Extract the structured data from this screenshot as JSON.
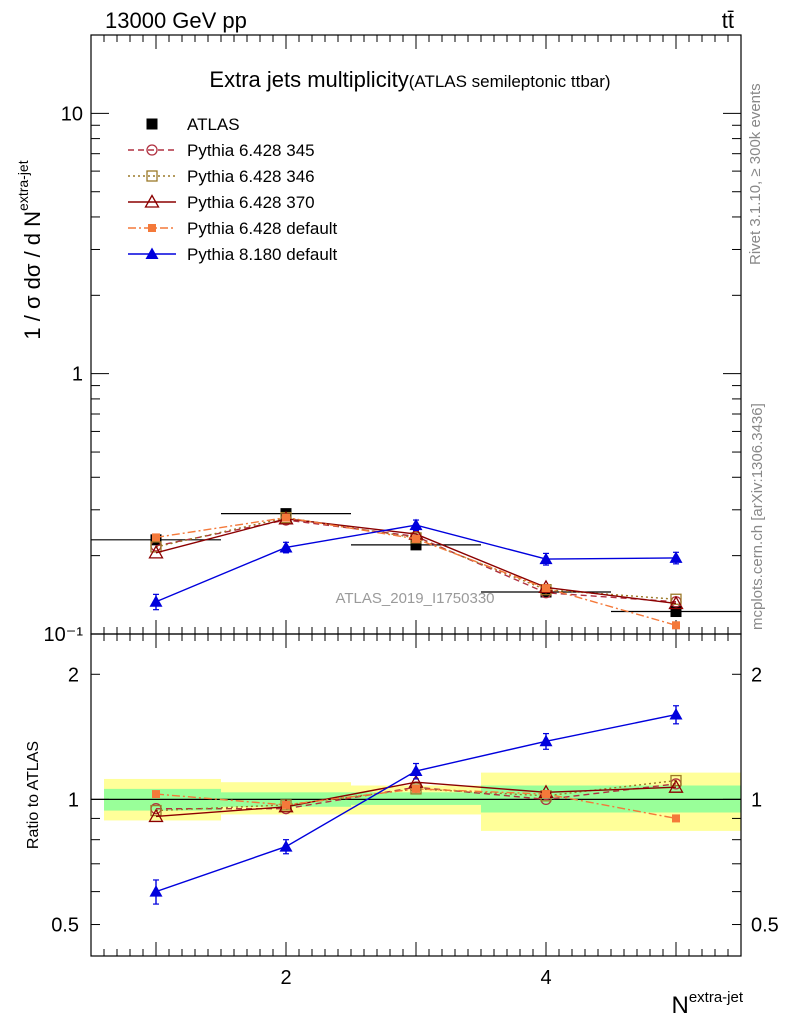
{
  "header": {
    "energy": "13000 GeV pp",
    "process": "tt̄"
  },
  "main_plot": {
    "title": "Extra jets multiplicity",
    "subtitle": "(ATLAS semileptonic ttbar)",
    "ylabel": "1 / σ dσ / d N",
    "ylabel_sup": "extra-jet",
    "analysis_id": "ATLAS_2019_I1750330"
  },
  "ratio_plot": {
    "ylabel": "Ratio to ATLAS"
  },
  "xaxis": {
    "label": "N",
    "label_sup": "extra-jet"
  },
  "side_text": {
    "rivet": "Rivet 3.1.10, ≥ 300k events",
    "mcplots": "mcplots.cern.ch [arXiv:1306.3436]"
  },
  "chart_data": [
    {
      "type": "line",
      "panel": "main",
      "yscale": "log",
      "xlim": [
        0.5,
        5.5
      ],
      "ylim": [
        0.1,
        20
      ],
      "x_ticks": [
        "2",
        "4"
      ],
      "y_ticks": [
        "10⁻¹",
        "1",
        "10"
      ],
      "x": [
        1,
        2,
        3,
        4,
        5
      ],
      "legend": "top-left",
      "series": [
        {
          "name": "ATLAS",
          "values": [
            0.23,
            0.29,
            0.22,
            0.145,
            0.122
          ],
          "errors": [
            0.006,
            0.007,
            0.006,
            0.005,
            0.005
          ],
          "bins": [
            [
              0.5,
              1.5
            ],
            [
              1.5,
              2.5
            ],
            [
              2.5,
              3.5
            ],
            [
              3.5,
              4.5
            ],
            [
              4.5,
              5.5
            ]
          ],
          "color": "#000000",
          "marker": "square-filled",
          "dash": "none"
        },
        {
          "name": "Pythia 6.428 345",
          "values": [
            0.218,
            0.274,
            0.237,
            0.144,
            0.133
          ],
          "color": "#b03040",
          "marker": "circle-open",
          "dash": "dashed"
        },
        {
          "name": "Pythia 6.428 346",
          "values": [
            0.216,
            0.28,
            0.234,
            0.148,
            0.136
          ],
          "color": "#9c7a28",
          "marker": "square-open",
          "dash": "dotted"
        },
        {
          "name": "Pythia 6.428 370",
          "values": [
            0.205,
            0.277,
            0.242,
            0.151,
            0.131
          ],
          "color": "#8b0000",
          "marker": "triangle-open",
          "dash": "solid"
        },
        {
          "name": "Pythia 6.428 default",
          "values": [
            0.235,
            0.28,
            0.232,
            0.15,
            0.108
          ],
          "color": "#f4793a",
          "marker": "square-small-filled",
          "dash": "dashdot"
        },
        {
          "name": "Pythia 8.180 default",
          "values": [
            0.133,
            0.215,
            0.262,
            0.194,
            0.196
          ],
          "errors": [
            0.009,
            0.01,
            0.012,
            0.01,
            0.01
          ],
          "color": "#0000dd",
          "marker": "triangle-filled",
          "dash": "solid"
        }
      ]
    },
    {
      "type": "line",
      "panel": "ratio",
      "yscale": "log",
      "xlim": [
        0.5,
        5.5
      ],
      "ylim": [
        0.42,
        2.5
      ],
      "x_ticks": [
        "2",
        "4"
      ],
      "y_ticks": [
        "0.5",
        "1",
        "2"
      ],
      "x": [
        1,
        2,
        3,
        4,
        5
      ],
      "bands": {
        "bins": [
          [
            0.6,
            1.5
          ],
          [
            1.5,
            2.5
          ],
          [
            2.5,
            3.5
          ],
          [
            3.5,
            5.5
          ]
        ],
        "stat_green": [
          [
            0.94,
            1.06
          ],
          [
            0.96,
            1.04
          ],
          [
            0.97,
            1.04
          ],
          [
            0.93,
            1.08
          ]
        ],
        "syst_yellow": [
          [
            0.89,
            1.12
          ],
          [
            0.92,
            1.1
          ],
          [
            0.92,
            1.08
          ],
          [
            0.84,
            1.16
          ]
        ]
      },
      "series": [
        {
          "name": "Pythia 6.428 345",
          "values": [
            0.95,
            0.95,
            1.07,
            1.0,
            1.09
          ],
          "color": "#b03040",
          "marker": "circle-open",
          "dash": "dashed"
        },
        {
          "name": "Pythia 6.428 346",
          "values": [
            0.94,
            0.97,
            1.06,
            1.02,
            1.11
          ],
          "color": "#9c7a28",
          "marker": "square-open",
          "dash": "dotted"
        },
        {
          "name": "Pythia 6.428 370",
          "values": [
            0.91,
            0.96,
            1.1,
            1.04,
            1.07
          ],
          "color": "#8b0000",
          "marker": "triangle-open",
          "dash": "solid"
        },
        {
          "name": "Pythia 6.428 default",
          "values": [
            1.03,
            0.97,
            1.06,
            1.03,
            0.9
          ],
          "color": "#f4793a",
          "marker": "square-small-filled",
          "dash": "dashdot"
        },
        {
          "name": "Pythia 8.180 default",
          "values": [
            0.6,
            0.77,
            1.17,
            1.38,
            1.6
          ],
          "errors": [
            0.04,
            0.03,
            0.05,
            0.06,
            0.08
          ],
          "color": "#0000dd",
          "marker": "triangle-filled",
          "dash": "solid"
        }
      ]
    }
  ]
}
